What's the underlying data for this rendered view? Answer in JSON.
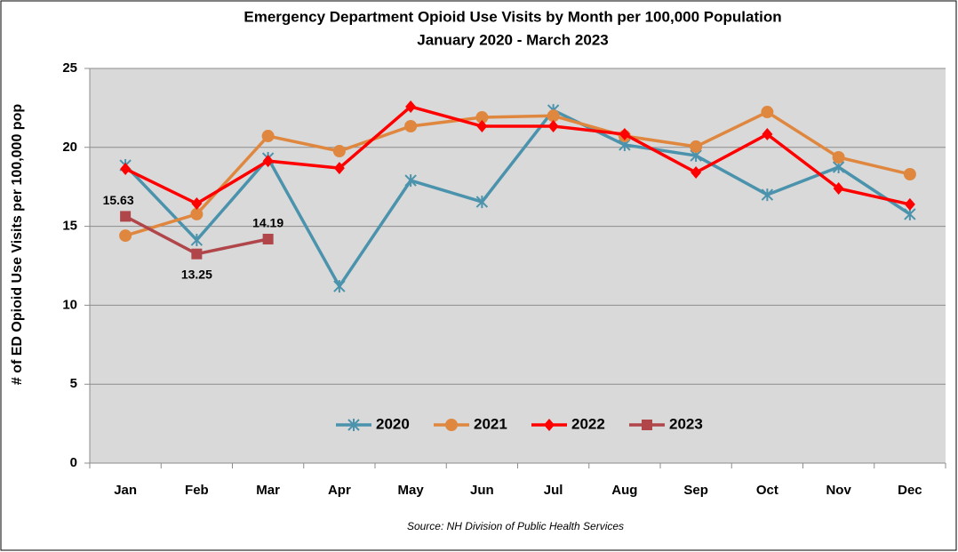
{
  "chart_data": {
    "type": "line",
    "title": "Emergency Department Opioid Use Visits by Month per 100,000 Population",
    "subtitle": "January 2020 - March 2023",
    "y_label": "# of ED Opioid Use Visits per 100,000 pop",
    "source": "Source: NH Division of Public Health Services",
    "categories": [
      "Jan",
      "Feb",
      "Mar",
      "Apr",
      "May",
      "Jun",
      "Jul",
      "Aug",
      "Sep",
      "Oct",
      "Nov",
      "Dec"
    ],
    "series": [
      {
        "name": "2020",
        "color": "#4b93ad",
        "marker": "star",
        "values": [
          18.86,
          14.13,
          19.31,
          11.2,
          17.9,
          16.55,
          22.35,
          20.16,
          19.48,
          17.0,
          18.75,
          15.77
        ]
      },
      {
        "name": "2021",
        "color": "#e0873f",
        "marker": "circle",
        "values": [
          14.41,
          15.77,
          20.72,
          19.76,
          21.34,
          21.9,
          22.0,
          20.72,
          20.05,
          22.24,
          19.37,
          18.3
        ]
      },
      {
        "name": "2022",
        "color": "#ff0000",
        "marker": "diamond",
        "values": [
          18.64,
          16.44,
          19.14,
          18.69,
          22.58,
          21.34,
          21.34,
          20.83,
          18.41,
          20.83,
          17.4,
          16.39
        ]
      },
      {
        "name": "2023",
        "color": "#b0464a",
        "marker": "square",
        "values": [
          15.63,
          13.25,
          14.19,
          null,
          null,
          null,
          null,
          null,
          null,
          null,
          null,
          null
        ],
        "data_labels": true
      }
    ],
    "ylim": [
      0,
      25
    ],
    "yticks": [
      0,
      5,
      10,
      15,
      20,
      25
    ],
    "grid": true,
    "legend": "bottom"
  }
}
